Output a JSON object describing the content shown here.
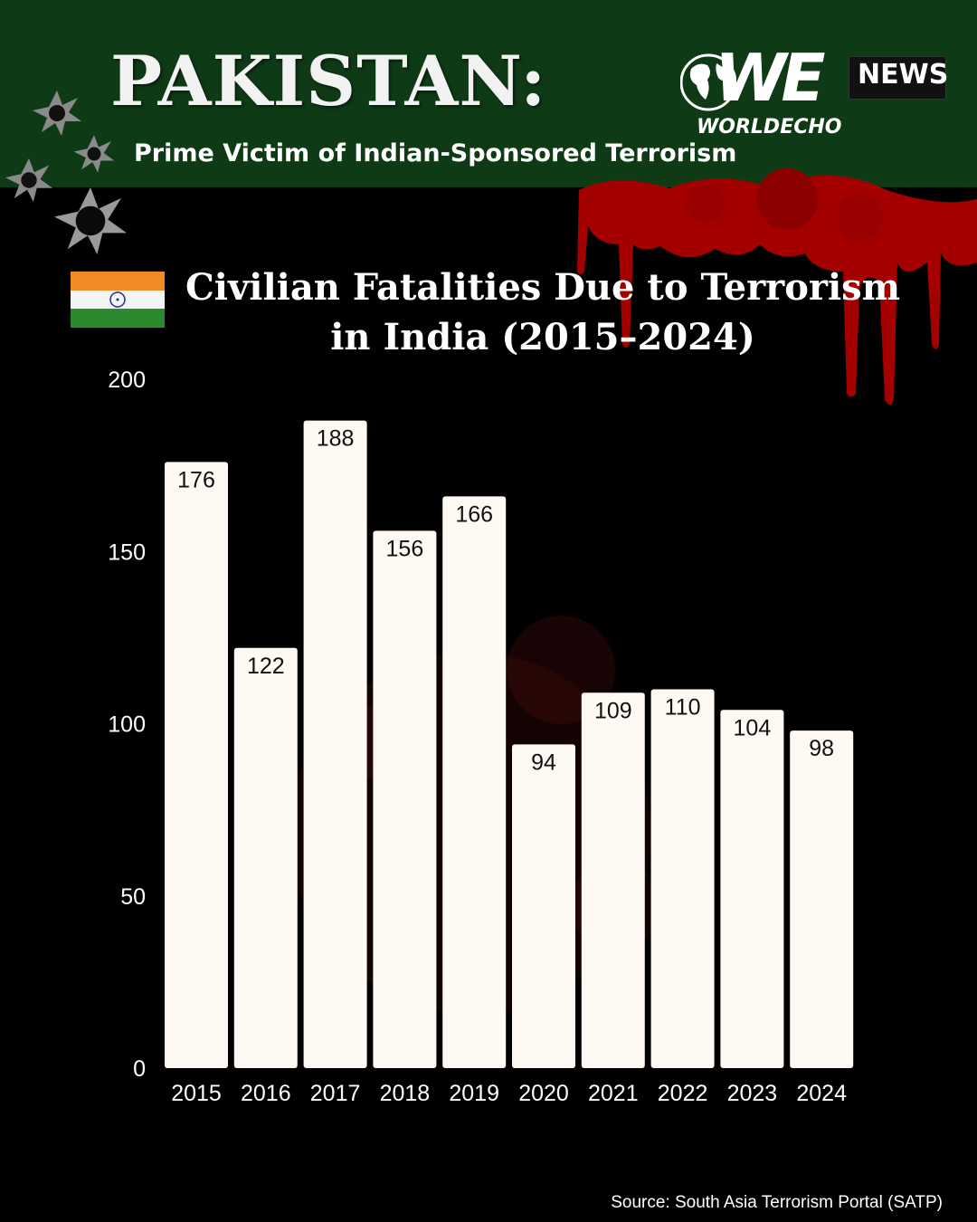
{
  "header": {
    "headline": "PAKISTAN:",
    "subheadline": "Prime Victim of Indian-Sponsored Terrorism"
  },
  "logo": {
    "mark": "WE",
    "badge": "NEWS",
    "brand": "WORLDECHO",
    "icon": "globe-icon"
  },
  "decor": {
    "bullet_icon": "bullet-hole-icon",
    "flag_icon": "india-flag-icon",
    "blood_icon": "blood-drip-icon"
  },
  "colors": {
    "header_bg": "#0f3a16",
    "background": "#000000",
    "bar_fill": "#fff9f4",
    "blood": "#b30000",
    "text": "#ffffff"
  },
  "chart_data": {
    "type": "bar",
    "title_lines": [
      "Civilian Fatalities Due to Terrorism",
      "in India (2015–2024)"
    ],
    "categories": [
      "2015",
      "2016",
      "2017",
      "2018",
      "2019",
      "2020",
      "2021",
      "2022",
      "2023",
      "2024"
    ],
    "values": [
      176,
      122,
      188,
      156,
      166,
      94,
      109,
      110,
      104,
      98
    ],
    "y_ticks": [
      0,
      50,
      100,
      150,
      200
    ],
    "ylim": [
      0,
      200
    ],
    "grid": false,
    "legend": "none",
    "data_labels": true
  },
  "footer": {
    "source": "Source:  South Asia Terrorism Portal (SATP)"
  }
}
